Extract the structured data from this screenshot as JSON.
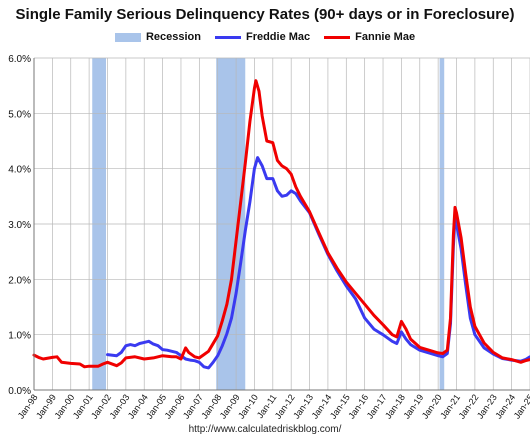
{
  "chart_data": {
    "type": "line",
    "title": "Single Family Serious Delinquency Rates (90+ days or in Foreclosure)",
    "xlabel": "",
    "ylabel": "",
    "ylim": [
      0,
      6
    ],
    "y_ticks": [
      0,
      1,
      2,
      3,
      4,
      5,
      6
    ],
    "y_tick_labels": [
      "0.0%",
      "1.0%",
      "2.0%",
      "3.0%",
      "4.0%",
      "5.0%",
      "6.0%"
    ],
    "x_ticks": [
      {
        "label": "Jan-98",
        "year": 1998
      },
      {
        "label": "Jan-99",
        "year": 1999
      },
      {
        "label": "Jan-00",
        "year": 2000
      },
      {
        "label": "Jan-01",
        "year": 2001
      },
      {
        "label": "Jan-02",
        "year": 2002
      },
      {
        "label": "Jan-03",
        "year": 2003
      },
      {
        "label": "Jan-04",
        "year": 2004
      },
      {
        "label": "Jan-05",
        "year": 2005
      },
      {
        "label": "Jan-06",
        "year": 2006
      },
      {
        "label": "Jan-07",
        "year": 2007
      },
      {
        "label": "Jan-08",
        "year": 2008
      },
      {
        "label": "Jan-09",
        "year": 2009
      },
      {
        "label": "Jan-10",
        "year": 2010
      },
      {
        "label": "Jan-11",
        "year": 2011
      },
      {
        "label": "Jan-12",
        "year": 2012
      },
      {
        "label": "Jan-13",
        "year": 2013
      },
      {
        "label": "Jan-14",
        "year": 2014
      },
      {
        "label": "Jan-15",
        "year": 2015
      },
      {
        "label": "Jan-16",
        "year": 2016
      },
      {
        "label": "Jan-17",
        "year": 2017
      },
      {
        "label": "Jan-18",
        "year": 2018
      },
      {
        "label": "Jan-19",
        "year": 2019
      },
      {
        "label": "Jan-20",
        "year": 2020
      },
      {
        "label": "Jan-21",
        "year": 2021
      },
      {
        "label": "Jan-22",
        "year": 2022
      },
      {
        "label": "Jan-23",
        "year": 2023
      },
      {
        "label": "Jan-24",
        "year": 2024
      },
      {
        "label": "Jan-25",
        "year": 2025
      }
    ],
    "xlim": [
      1998,
      2025
    ],
    "grid": "vertical-and-horizontal",
    "legend_position": "top-center",
    "recessions": [
      {
        "name": "Recession",
        "start": 2001.17,
        "end": 2001.92
      },
      {
        "name": "Recession",
        "start": 2007.92,
        "end": 2009.5
      },
      {
        "name": "Recession",
        "start": 2020.08,
        "end": 2020.33
      }
    ],
    "series": [
      {
        "name": "Recession",
        "color": "#a9c4ea",
        "kind": "band"
      },
      {
        "name": "Freddie Mac",
        "color": "#3a3af0",
        "kind": "line",
        "points": [
          [
            2002.0,
            0.64
          ],
          [
            2002.5,
            0.62
          ],
          [
            2002.75,
            0.68
          ],
          [
            2003.0,
            0.8
          ],
          [
            2003.25,
            0.82
          ],
          [
            2003.5,
            0.8
          ],
          [
            2003.75,
            0.84
          ],
          [
            2004.0,
            0.86
          ],
          [
            2004.25,
            0.88
          ],
          [
            2004.5,
            0.83
          ],
          [
            2004.75,
            0.8
          ],
          [
            2005.0,
            0.73
          ],
          [
            2005.25,
            0.72
          ],
          [
            2005.5,
            0.7
          ],
          [
            2005.75,
            0.68
          ],
          [
            2006.0,
            0.62
          ],
          [
            2006.25,
            0.56
          ],
          [
            2006.5,
            0.54
          ],
          [
            2006.75,
            0.53
          ],
          [
            2007.0,
            0.5
          ],
          [
            2007.25,
            0.42
          ],
          [
            2007.5,
            0.4
          ],
          [
            2007.75,
            0.5
          ],
          [
            2008.0,
            0.62
          ],
          [
            2008.25,
            0.8
          ],
          [
            2008.5,
            1.02
          ],
          [
            2008.75,
            1.3
          ],
          [
            2009.0,
            1.75
          ],
          [
            2009.25,
            2.3
          ],
          [
            2009.5,
            2.88
          ],
          [
            2009.75,
            3.4
          ],
          [
            2010.0,
            4.0
          ],
          [
            2010.17,
            4.2
          ],
          [
            2010.42,
            4.05
          ],
          [
            2010.67,
            3.82
          ],
          [
            2011.0,
            3.82
          ],
          [
            2011.25,
            3.6
          ],
          [
            2011.5,
            3.5
          ],
          [
            2011.75,
            3.52
          ],
          [
            2012.0,
            3.6
          ],
          [
            2012.25,
            3.55
          ],
          [
            2012.5,
            3.42
          ],
          [
            2013.0,
            3.2
          ],
          [
            2013.5,
            2.82
          ],
          [
            2014.0,
            2.45
          ],
          [
            2014.5,
            2.15
          ],
          [
            2015.0,
            1.88
          ],
          [
            2015.5,
            1.65
          ],
          [
            2016.0,
            1.3
          ],
          [
            2016.5,
            1.1
          ],
          [
            2017.0,
            1.0
          ],
          [
            2017.5,
            0.88
          ],
          [
            2017.75,
            0.84
          ],
          [
            2018.0,
            1.05
          ],
          [
            2018.25,
            0.92
          ],
          [
            2018.5,
            0.82
          ],
          [
            2019.0,
            0.72
          ],
          [
            2019.5,
            0.67
          ],
          [
            2020.0,
            0.62
          ],
          [
            2020.25,
            0.6
          ],
          [
            2020.5,
            0.66
          ],
          [
            2020.67,
            1.2
          ],
          [
            2020.83,
            2.6
          ],
          [
            2020.92,
            3.1
          ],
          [
            2021.0,
            3.0
          ],
          [
            2021.25,
            2.55
          ],
          [
            2021.5,
            1.9
          ],
          [
            2021.75,
            1.3
          ],
          [
            2022.0,
            1.0
          ],
          [
            2022.5,
            0.76
          ],
          [
            2023.0,
            0.65
          ],
          [
            2023.5,
            0.57
          ],
          [
            2024.0,
            0.54
          ],
          [
            2024.5,
            0.52
          ],
          [
            2024.75,
            0.55
          ],
          [
            2025.0,
            0.6
          ],
          [
            2025.2,
            0.62
          ]
        ]
      },
      {
        "name": "Fannie Mae",
        "color": "#f00000",
        "kind": "line",
        "points": [
          [
            1998.0,
            0.63
          ],
          [
            1998.25,
            0.59
          ],
          [
            1998.5,
            0.56
          ],
          [
            1999.0,
            0.59
          ],
          [
            1999.25,
            0.6
          ],
          [
            1999.5,
            0.5
          ],
          [
            2000.0,
            0.48
          ],
          [
            2000.5,
            0.47
          ],
          [
            2000.75,
            0.42
          ],
          [
            2001.0,
            0.43
          ],
          [
            2001.5,
            0.43
          ],
          [
            2001.75,
            0.47
          ],
          [
            2002.0,
            0.5
          ],
          [
            2002.5,
            0.44
          ],
          [
            2002.75,
            0.49
          ],
          [
            2003.0,
            0.58
          ],
          [
            2003.5,
            0.6
          ],
          [
            2004.0,
            0.56
          ],
          [
            2004.5,
            0.58
          ],
          [
            2005.0,
            0.62
          ],
          [
            2005.5,
            0.6
          ],
          [
            2005.75,
            0.6
          ],
          [
            2006.0,
            0.56
          ],
          [
            2006.25,
            0.76
          ],
          [
            2006.42,
            0.68
          ],
          [
            2006.75,
            0.6
          ],
          [
            2007.0,
            0.58
          ],
          [
            2007.25,
            0.64
          ],
          [
            2007.5,
            0.7
          ],
          [
            2008.0,
            0.98
          ],
          [
            2008.25,
            1.25
          ],
          [
            2008.5,
            1.55
          ],
          [
            2008.75,
            2.0
          ],
          [
            2009.0,
            2.7
          ],
          [
            2009.25,
            3.4
          ],
          [
            2009.5,
            4.1
          ],
          [
            2009.75,
            4.85
          ],
          [
            2010.0,
            5.45
          ],
          [
            2010.08,
            5.59
          ],
          [
            2010.25,
            5.4
          ],
          [
            2010.42,
            4.95
          ],
          [
            2010.67,
            4.5
          ],
          [
            2011.0,
            4.47
          ],
          [
            2011.25,
            4.15
          ],
          [
            2011.5,
            4.05
          ],
          [
            2011.75,
            4.0
          ],
          [
            2012.0,
            3.9
          ],
          [
            2012.25,
            3.67
          ],
          [
            2012.5,
            3.5
          ],
          [
            2013.0,
            3.22
          ],
          [
            2013.5,
            2.85
          ],
          [
            2014.0,
            2.48
          ],
          [
            2014.5,
            2.2
          ],
          [
            2015.0,
            1.95
          ],
          [
            2015.5,
            1.75
          ],
          [
            2016.0,
            1.55
          ],
          [
            2016.5,
            1.35
          ],
          [
            2017.0,
            1.18
          ],
          [
            2017.5,
            1.0
          ],
          [
            2017.75,
            0.96
          ],
          [
            2018.0,
            1.24
          ],
          [
            2018.25,
            1.1
          ],
          [
            2018.5,
            0.92
          ],
          [
            2019.0,
            0.77
          ],
          [
            2019.5,
            0.72
          ],
          [
            2020.0,
            0.67
          ],
          [
            2020.25,
            0.66
          ],
          [
            2020.5,
            0.72
          ],
          [
            2020.67,
            1.3
          ],
          [
            2020.83,
            2.8
          ],
          [
            2020.92,
            3.3
          ],
          [
            2021.0,
            3.2
          ],
          [
            2021.25,
            2.75
          ],
          [
            2021.5,
            2.1
          ],
          [
            2021.75,
            1.5
          ],
          [
            2022.0,
            1.15
          ],
          [
            2022.5,
            0.85
          ],
          [
            2023.0,
            0.68
          ],
          [
            2023.5,
            0.58
          ],
          [
            2024.0,
            0.55
          ],
          [
            2024.5,
            0.5
          ],
          [
            2024.75,
            0.53
          ],
          [
            2025.0,
            0.55
          ],
          [
            2025.2,
            0.57
          ]
        ]
      }
    ]
  },
  "source": "http://www.calculatedriskblog.com/"
}
